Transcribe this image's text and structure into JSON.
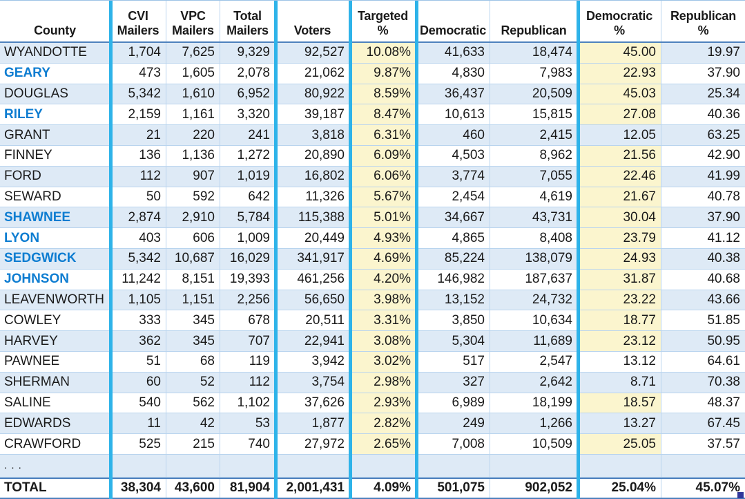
{
  "table": {
    "columns": [
      {
        "id": "county",
        "label": "County"
      },
      {
        "id": "cvi",
        "label": "CVI\nMailers"
      },
      {
        "id": "vpc",
        "label": "VPC\nMailers"
      },
      {
        "id": "total",
        "label": "Total\nMailers"
      },
      {
        "id": "voters",
        "label": "Voters"
      },
      {
        "id": "targeted",
        "label": "Targeted\n%"
      },
      {
        "id": "dem",
        "label": "Democratic"
      },
      {
        "id": "rep",
        "label": "Republican"
      },
      {
        "id": "dem_pct",
        "label": "Democratic\n%"
      },
      {
        "id": "rep_pct",
        "label": "Republican\n%"
      }
    ],
    "rows": [
      {
        "county": "WYANDOTTE",
        "county_blue": false,
        "cvi": "1,704",
        "vpc": "7,625",
        "total": "9,329",
        "voters": "92,527",
        "targeted": "10.08%",
        "dem": "41,633",
        "rep": "18,474",
        "dem_pct": "45.00",
        "rep_pct": "19.97",
        "dem_pct_highlight": true
      },
      {
        "county": "GEARY",
        "county_blue": true,
        "cvi": "473",
        "vpc": "1,605",
        "total": "2,078",
        "voters": "21,062",
        "targeted": "9.87%",
        "dem": "4,830",
        "rep": "7,983",
        "dem_pct": "22.93",
        "rep_pct": "37.90",
        "dem_pct_highlight": true
      },
      {
        "county": "DOUGLAS",
        "county_blue": false,
        "cvi": "5,342",
        "vpc": "1,610",
        "total": "6,952",
        "voters": "80,922",
        "targeted": "8.59%",
        "dem": "36,437",
        "rep": "20,509",
        "dem_pct": "45.03",
        "rep_pct": "25.34",
        "dem_pct_highlight": true
      },
      {
        "county": "RILEY",
        "county_blue": true,
        "cvi": "2,159",
        "vpc": "1,161",
        "total": "3,320",
        "voters": "39,187",
        "targeted": "8.47%",
        "dem": "10,613",
        "rep": "15,815",
        "dem_pct": "27.08",
        "rep_pct": "40.36",
        "dem_pct_highlight": true
      },
      {
        "county": "GRANT",
        "county_blue": false,
        "cvi": "21",
        "vpc": "220",
        "total": "241",
        "voters": "3,818",
        "targeted": "6.31%",
        "dem": "460",
        "rep": "2,415",
        "dem_pct": "12.05",
        "rep_pct": "63.25",
        "dem_pct_highlight": false
      },
      {
        "county": "FINNEY",
        "county_blue": false,
        "cvi": "136",
        "vpc": "1,136",
        "total": "1,272",
        "voters": "20,890",
        "targeted": "6.09%",
        "dem": "4,503",
        "rep": "8,962",
        "dem_pct": "21.56",
        "rep_pct": "42.90",
        "dem_pct_highlight": true
      },
      {
        "county": "FORD",
        "county_blue": false,
        "cvi": "112",
        "vpc": "907",
        "total": "1,019",
        "voters": "16,802",
        "targeted": "6.06%",
        "dem": "3,774",
        "rep": "7,055",
        "dem_pct": "22.46",
        "rep_pct": "41.99",
        "dem_pct_highlight": true
      },
      {
        "county": "SEWARD",
        "county_blue": false,
        "cvi": "50",
        "vpc": "592",
        "total": "642",
        "voters": "11,326",
        "targeted": "5.67%",
        "dem": "2,454",
        "rep": "4,619",
        "dem_pct": "21.67",
        "rep_pct": "40.78",
        "dem_pct_highlight": true
      },
      {
        "county": "SHAWNEE",
        "county_blue": true,
        "cvi": "2,874",
        "vpc": "2,910",
        "total": "5,784",
        "voters": "115,388",
        "targeted": "5.01%",
        "dem": "34,667",
        "rep": "43,731",
        "dem_pct": "30.04",
        "rep_pct": "37.90",
        "dem_pct_highlight": true
      },
      {
        "county": "LYON",
        "county_blue": true,
        "cvi": "403",
        "vpc": "606",
        "total": "1,009",
        "voters": "20,449",
        "targeted": "4.93%",
        "dem": "4,865",
        "rep": "8,408",
        "dem_pct": "23.79",
        "rep_pct": "41.12",
        "dem_pct_highlight": true
      },
      {
        "county": "SEDGWICK",
        "county_blue": true,
        "cvi": "5,342",
        "vpc": "10,687",
        "total": "16,029",
        "voters": "341,917",
        "targeted": "4.69%",
        "dem": "85,224",
        "rep": "138,079",
        "dem_pct": "24.93",
        "rep_pct": "40.38",
        "dem_pct_highlight": true
      },
      {
        "county": "JOHNSON",
        "county_blue": true,
        "cvi": "11,242",
        "vpc": "8,151",
        "total": "19,393",
        "voters": "461,256",
        "targeted": "4.20%",
        "dem": "146,982",
        "rep": "187,637",
        "dem_pct": "31.87",
        "rep_pct": "40.68",
        "dem_pct_highlight": true
      },
      {
        "county": "LEAVENWORTH",
        "county_blue": false,
        "cvi": "1,105",
        "vpc": "1,151",
        "total": "2,256",
        "voters": "56,650",
        "targeted": "3.98%",
        "dem": "13,152",
        "rep": "24,732",
        "dem_pct": "23.22",
        "rep_pct": "43.66",
        "dem_pct_highlight": true
      },
      {
        "county": "COWLEY",
        "county_blue": false,
        "cvi": "333",
        "vpc": "345",
        "total": "678",
        "voters": "20,511",
        "targeted": "3.31%",
        "dem": "3,850",
        "rep": "10,634",
        "dem_pct": "18.77",
        "rep_pct": "51.85",
        "dem_pct_highlight": true
      },
      {
        "county": "HARVEY",
        "county_blue": false,
        "cvi": "362",
        "vpc": "345",
        "total": "707",
        "voters": "22,941",
        "targeted": "3.08%",
        "dem": "5,304",
        "rep": "11,689",
        "dem_pct": "23.12",
        "rep_pct": "50.95",
        "dem_pct_highlight": true
      },
      {
        "county": "PAWNEE",
        "county_blue": false,
        "cvi": "51",
        "vpc": "68",
        "total": "119",
        "voters": "3,942",
        "targeted": "3.02%",
        "dem": "517",
        "rep": "2,547",
        "dem_pct": "13.12",
        "rep_pct": "64.61",
        "dem_pct_highlight": false
      },
      {
        "county": "SHERMAN",
        "county_blue": false,
        "cvi": "60",
        "vpc": "52",
        "total": "112",
        "voters": "3,754",
        "targeted": "2.98%",
        "dem": "327",
        "rep": "2,642",
        "dem_pct": "8.71",
        "rep_pct": "70.38",
        "dem_pct_highlight": false
      },
      {
        "county": "SALINE",
        "county_blue": false,
        "cvi": "540",
        "vpc": "562",
        "total": "1,102",
        "voters": "37,626",
        "targeted": "2.93%",
        "dem": "6,989",
        "rep": "18,199",
        "dem_pct": "18.57",
        "rep_pct": "48.37",
        "dem_pct_highlight": true
      },
      {
        "county": "EDWARDS",
        "county_blue": false,
        "cvi": "11",
        "vpc": "42",
        "total": "53",
        "voters": "1,877",
        "targeted": "2.82%",
        "dem": "249",
        "rep": "1,266",
        "dem_pct": "13.27",
        "rep_pct": "67.45",
        "dem_pct_highlight": false
      },
      {
        "county": "CRAWFORD",
        "county_blue": false,
        "cvi": "525",
        "vpc": "215",
        "total": "740",
        "voters": "27,972",
        "targeted": "2.65%",
        "dem": "7,008",
        "rep": "10,509",
        "dem_pct": "25.05",
        "rep_pct": "37.57",
        "dem_pct_highlight": true
      }
    ],
    "ellipsis_label": ". . .",
    "total_row": {
      "county": "TOTAL",
      "cvi": "38,304",
      "vpc": "43,600",
      "total": "81,904",
      "voters": "2,001,431",
      "targeted": "4.09%",
      "dem": "501,075",
      "rep": "902,052",
      "dem_pct": "25.04%",
      "rep_pct": "45.07%"
    }
  },
  "colors": {
    "thick_divider_cyan": "#2EB3E9",
    "row_stripe_blue": "#DEEAF6",
    "highlight_yellow": "#FBF5CE",
    "county_link_blue": "#0E7DD1",
    "grid_line_blue": "#B9D4EE",
    "section_border_blue": "#4E81BD",
    "fill_handle_navy": "#31379B"
  }
}
